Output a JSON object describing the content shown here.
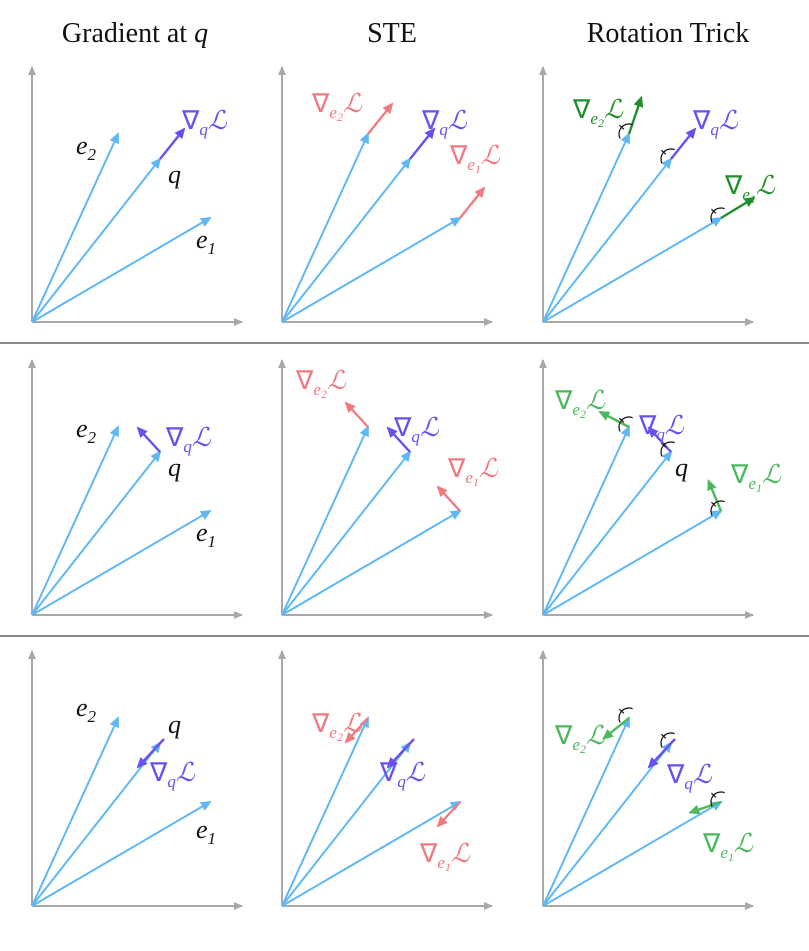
{
  "headers": [
    "Gradient at ",
    "q",
    "STE",
    "Rotation Trick"
  ],
  "labels": {
    "e": "e",
    "q": "q",
    "sub1": "1",
    "sub2": "2",
    "nabla": "∇",
    "L": "ℒ"
  },
  "colors": {
    "axis": "#a8a8a8",
    "codebook": "#5fb8f5",
    "query_grad": "#6a4ff0",
    "ste_grad": "#f07a80",
    "rot_grad_dark": "#1f8f2e",
    "rot_grad_light": "#4cb85c",
    "separator": "#8a8a8a",
    "text": "#111111"
  }
}
